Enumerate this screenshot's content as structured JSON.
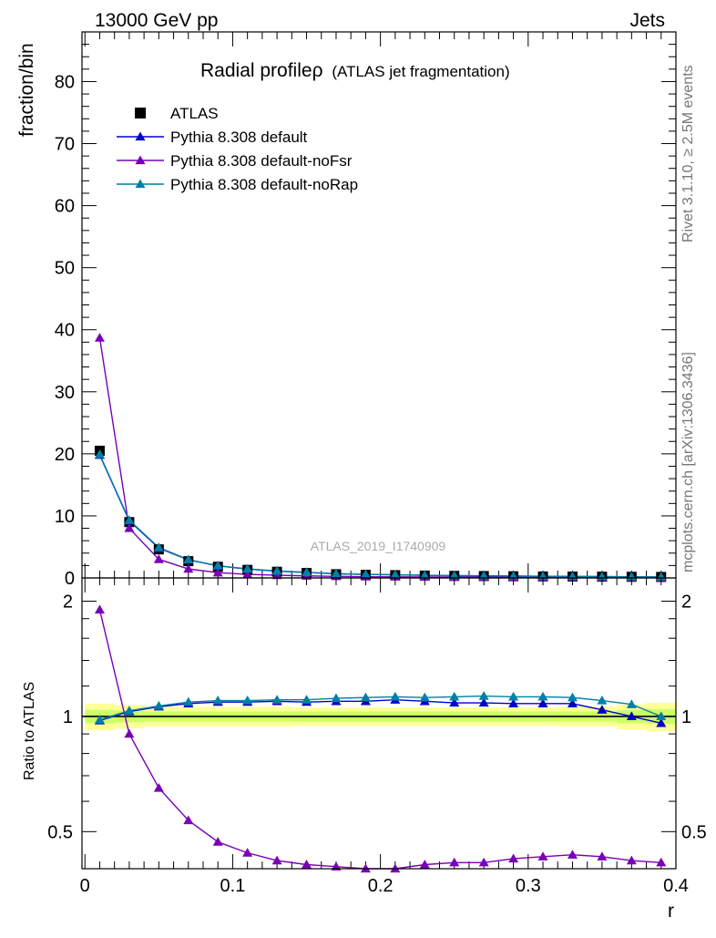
{
  "header": {
    "left": "13000 GeV pp",
    "right": "Jets"
  },
  "side_labels": {
    "rivet": "Rivet 3.1.10, ≥ 2.5M events",
    "mcplots": "mcplots.cern.ch [arXiv:1306.3436]"
  },
  "watermark": "ATLAS_2019_I1740909",
  "chart_data": [
    {
      "type": "scatter",
      "panel": "main",
      "title": "Radial profileρ",
      "subtitle": "(ATLAS jet fragmentation)",
      "xlabel": "",
      "ylabel": "fraction/bin",
      "xlim": [
        -0.002,
        0.4
      ],
      "ylim": [
        0,
        88
      ],
      "yticks": [
        0,
        10,
        20,
        30,
        40,
        50,
        60,
        70,
        80
      ],
      "grid": false,
      "legend_position": "top-left",
      "x": [
        0.01,
        0.03,
        0.05,
        0.07,
        0.09,
        0.11,
        0.13,
        0.15,
        0.17,
        0.19,
        0.21,
        0.23,
        0.25,
        0.27,
        0.29,
        0.31,
        0.33,
        0.35,
        0.37,
        0.39
      ],
      "series": [
        {
          "name": "ATLAS",
          "marker": "square",
          "color": "#000000",
          "values": [
            20.5,
            9.0,
            4.6,
            2.7,
            1.8,
            1.3,
            1.0,
            0.8,
            0.6,
            0.5,
            0.45,
            0.38,
            0.33,
            0.3,
            0.27,
            0.24,
            0.22,
            0.2,
            0.18,
            0.16
          ]
        },
        {
          "name": "Pythia 8.308 default",
          "marker": "triangle",
          "color": "#0000cc",
          "values": [
            19.8,
            9.2,
            4.8,
            2.9,
            1.95,
            1.42,
            1.1,
            0.88,
            0.67,
            0.56,
            0.5,
            0.42,
            0.36,
            0.33,
            0.3,
            0.26,
            0.24,
            0.21,
            0.18,
            0.155
          ]
        },
        {
          "name": "Pythia 8.308 default-noFsr",
          "marker": "triangle",
          "color": "#7a00b8",
          "values": [
            38.7,
            8.0,
            3.0,
            1.45,
            0.85,
            0.58,
            0.43,
            0.33,
            0.25,
            0.2,
            0.18,
            0.16,
            0.14,
            0.12,
            0.11,
            0.1,
            0.095,
            0.087,
            0.077,
            0.067
          ]
        },
        {
          "name": "Pythia 8.308 default-noRap",
          "marker": "triangle",
          "color": "#007fa8",
          "values": [
            19.9,
            9.3,
            4.9,
            2.95,
            1.98,
            1.45,
            1.12,
            0.9,
            0.69,
            0.57,
            0.52,
            0.43,
            0.38,
            0.34,
            0.31,
            0.27,
            0.25,
            0.22,
            0.19,
            0.16
          ]
        }
      ]
    },
    {
      "type": "line",
      "panel": "ratio",
      "xlabel": "r",
      "ylabel": "Ratio to ATLAS",
      "xlim": [
        -0.002,
        0.4
      ],
      "ylim": [
        0.4,
        2.3
      ],
      "yticks": [
        0.5,
        1,
        2
      ],
      "xticks": [
        0,
        0.1,
        0.2,
        0.3,
        0.4
      ],
      "grid": false,
      "x": [
        0.01,
        0.03,
        0.05,
        0.07,
        0.09,
        0.11,
        0.13,
        0.15,
        0.17,
        0.19,
        0.21,
        0.23,
        0.25,
        0.27,
        0.29,
        0.31,
        0.33,
        0.35,
        0.37,
        0.39
      ],
      "band": {
        "name": "ATLAS uncertainty",
        "inner_color": "#ccff66",
        "outer_color": "#ffff99",
        "inner": [
          0.04,
          0.035,
          0.03,
          0.03,
          0.03,
          0.03,
          0.03,
          0.03,
          0.03,
          0.03,
          0.03,
          0.03,
          0.03,
          0.03,
          0.03,
          0.03,
          0.03,
          0.03,
          0.04,
          0.045
        ],
        "outer": [
          0.08,
          0.07,
          0.06,
          0.06,
          0.06,
          0.06,
          0.06,
          0.055,
          0.055,
          0.055,
          0.055,
          0.055,
          0.055,
          0.055,
          0.055,
          0.055,
          0.06,
          0.06,
          0.075,
          0.085
        ]
      },
      "series": [
        {
          "name": "Pythia 8.308 default",
          "color": "#0000cc",
          "values": [
            0.975,
            1.03,
            1.06,
            1.08,
            1.09,
            1.09,
            1.095,
            1.09,
            1.095,
            1.095,
            1.105,
            1.095,
            1.085,
            1.085,
            1.08,
            1.08,
            1.08,
            1.04,
            1.0,
            0.96
          ]
        },
        {
          "name": "Pythia 8.308 default-noFsr",
          "color": "#7a00b8",
          "values": [
            1.9,
            0.9,
            0.65,
            0.535,
            0.47,
            0.44,
            0.42,
            0.41,
            0.405,
            0.4,
            0.4,
            0.41,
            0.415,
            0.415,
            0.425,
            0.43,
            0.435,
            0.43,
            0.42,
            0.415
          ]
        },
        {
          "name": "Pythia 8.308 default-noRap",
          "color": "#007fa8",
          "values": [
            0.98,
            1.035,
            1.065,
            1.09,
            1.1,
            1.1,
            1.105,
            1.105,
            1.115,
            1.12,
            1.125,
            1.12,
            1.125,
            1.13,
            1.125,
            1.125,
            1.12,
            1.1,
            1.075,
            1.0
          ]
        }
      ]
    }
  ]
}
